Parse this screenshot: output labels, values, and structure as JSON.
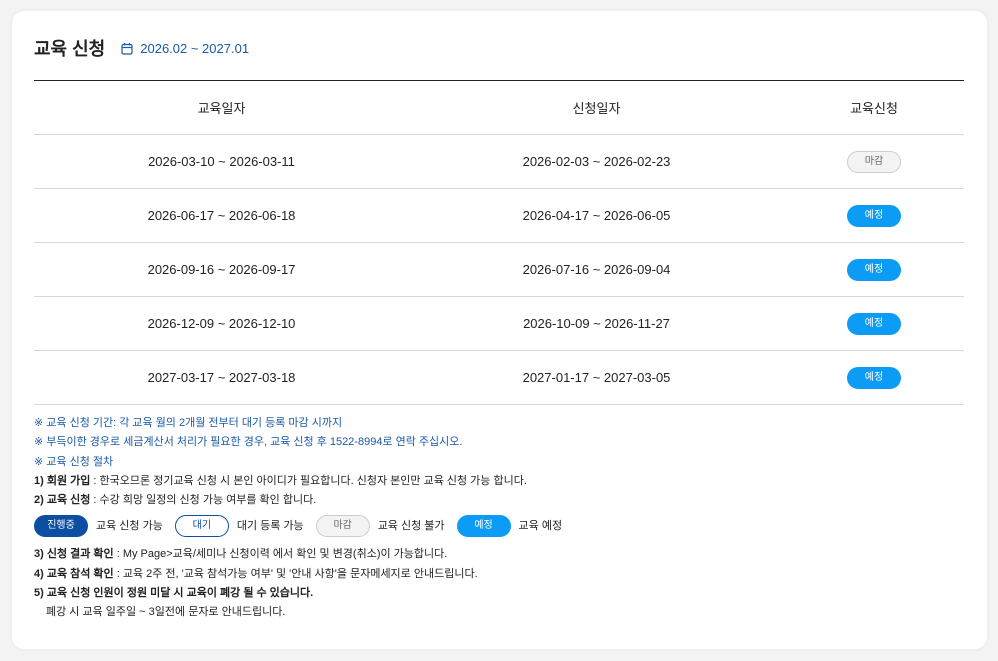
{
  "header": {
    "title": "교육 신청",
    "period": "2026.02 ~ 2027.01",
    "icon": "calendar-icon"
  },
  "table": {
    "columns": [
      "교육일자",
      "신청일자",
      "교육신청"
    ],
    "rows": [
      {
        "edu_date": "2026-03-10 ~ 2026-03-11",
        "apply_date": "2026-02-03 ~ 2026-02-23",
        "status": "마감",
        "type": "closed"
      },
      {
        "edu_date": "2026-06-17 ~ 2026-06-18",
        "apply_date": "2026-04-17 ~ 2026-06-05",
        "status": "예정",
        "type": "sched"
      },
      {
        "edu_date": "2026-09-16 ~ 2026-09-17",
        "apply_date": "2026-07-16 ~ 2026-09-04",
        "status": "예정",
        "type": "sched"
      },
      {
        "edu_date": "2026-12-09 ~ 2026-12-10",
        "apply_date": "2026-10-09 ~ 2026-11-27",
        "status": "예정",
        "type": "sched"
      },
      {
        "edu_date": "2027-03-17 ~ 2027-03-18",
        "apply_date": "2027-01-17 ~ 2027-03-05",
        "status": "예정",
        "type": "sched"
      }
    ]
  },
  "notes": {
    "n1": "※ 교육 신청 기간: 각 교육 월의 2개월 전부터 대기 등록 마감 시까지",
    "n2": "※ 부득이한 경우로 세금계산서 처리가 필요한 경우, 교육 신청 후 1522-8994로 연락 주십시오.",
    "n3": "※ 교육 신청 절차",
    "s1_title": "1) 회원 가입",
    "s1_text": " : 한국오므론 정기교육 신청 시 본인 아이디가 필요합니다. 신청자 본인만 교육 신청 가능 합니다.",
    "s2_title": "2) 교육 신청",
    "s2_text": " : 수강 희망 일정의 신청 가능 여부를 확인 합니다.",
    "legend": [
      {
        "badge": "진행중",
        "text": "교육 신청 가능"
      },
      {
        "badge": "대기",
        "text": "대기 등록 가능"
      },
      {
        "badge": "마감",
        "text": "교육 신청 불가"
      },
      {
        "badge": "예정",
        "text": "교육 예정"
      }
    ],
    "s3_title": "3) 신청 결과 확인",
    "s3_text": " : My Page>교육/세미나 신청이력 에서 확인 및 변경(취소)이 가능합니다.",
    "s4_title": "4) 교육 참석 확인",
    "s4_text": " : 교육 2주 전, '교육 참석가능 여부' 및 '안내 사항'을 문자메세지로 안내드립니다.",
    "s5_title": "5) 교육 신청 인원이 정원 미달 시 교육이 폐강 될 수 있습니다.",
    "s5_sub": "폐강 시 교육 일주일 ~ 3일전에 문자로 안내드립니다."
  },
  "colors": {
    "primary": "#0b4ea2",
    "scheduled": "#0c9cf5",
    "link": "#1a5aa8"
  }
}
